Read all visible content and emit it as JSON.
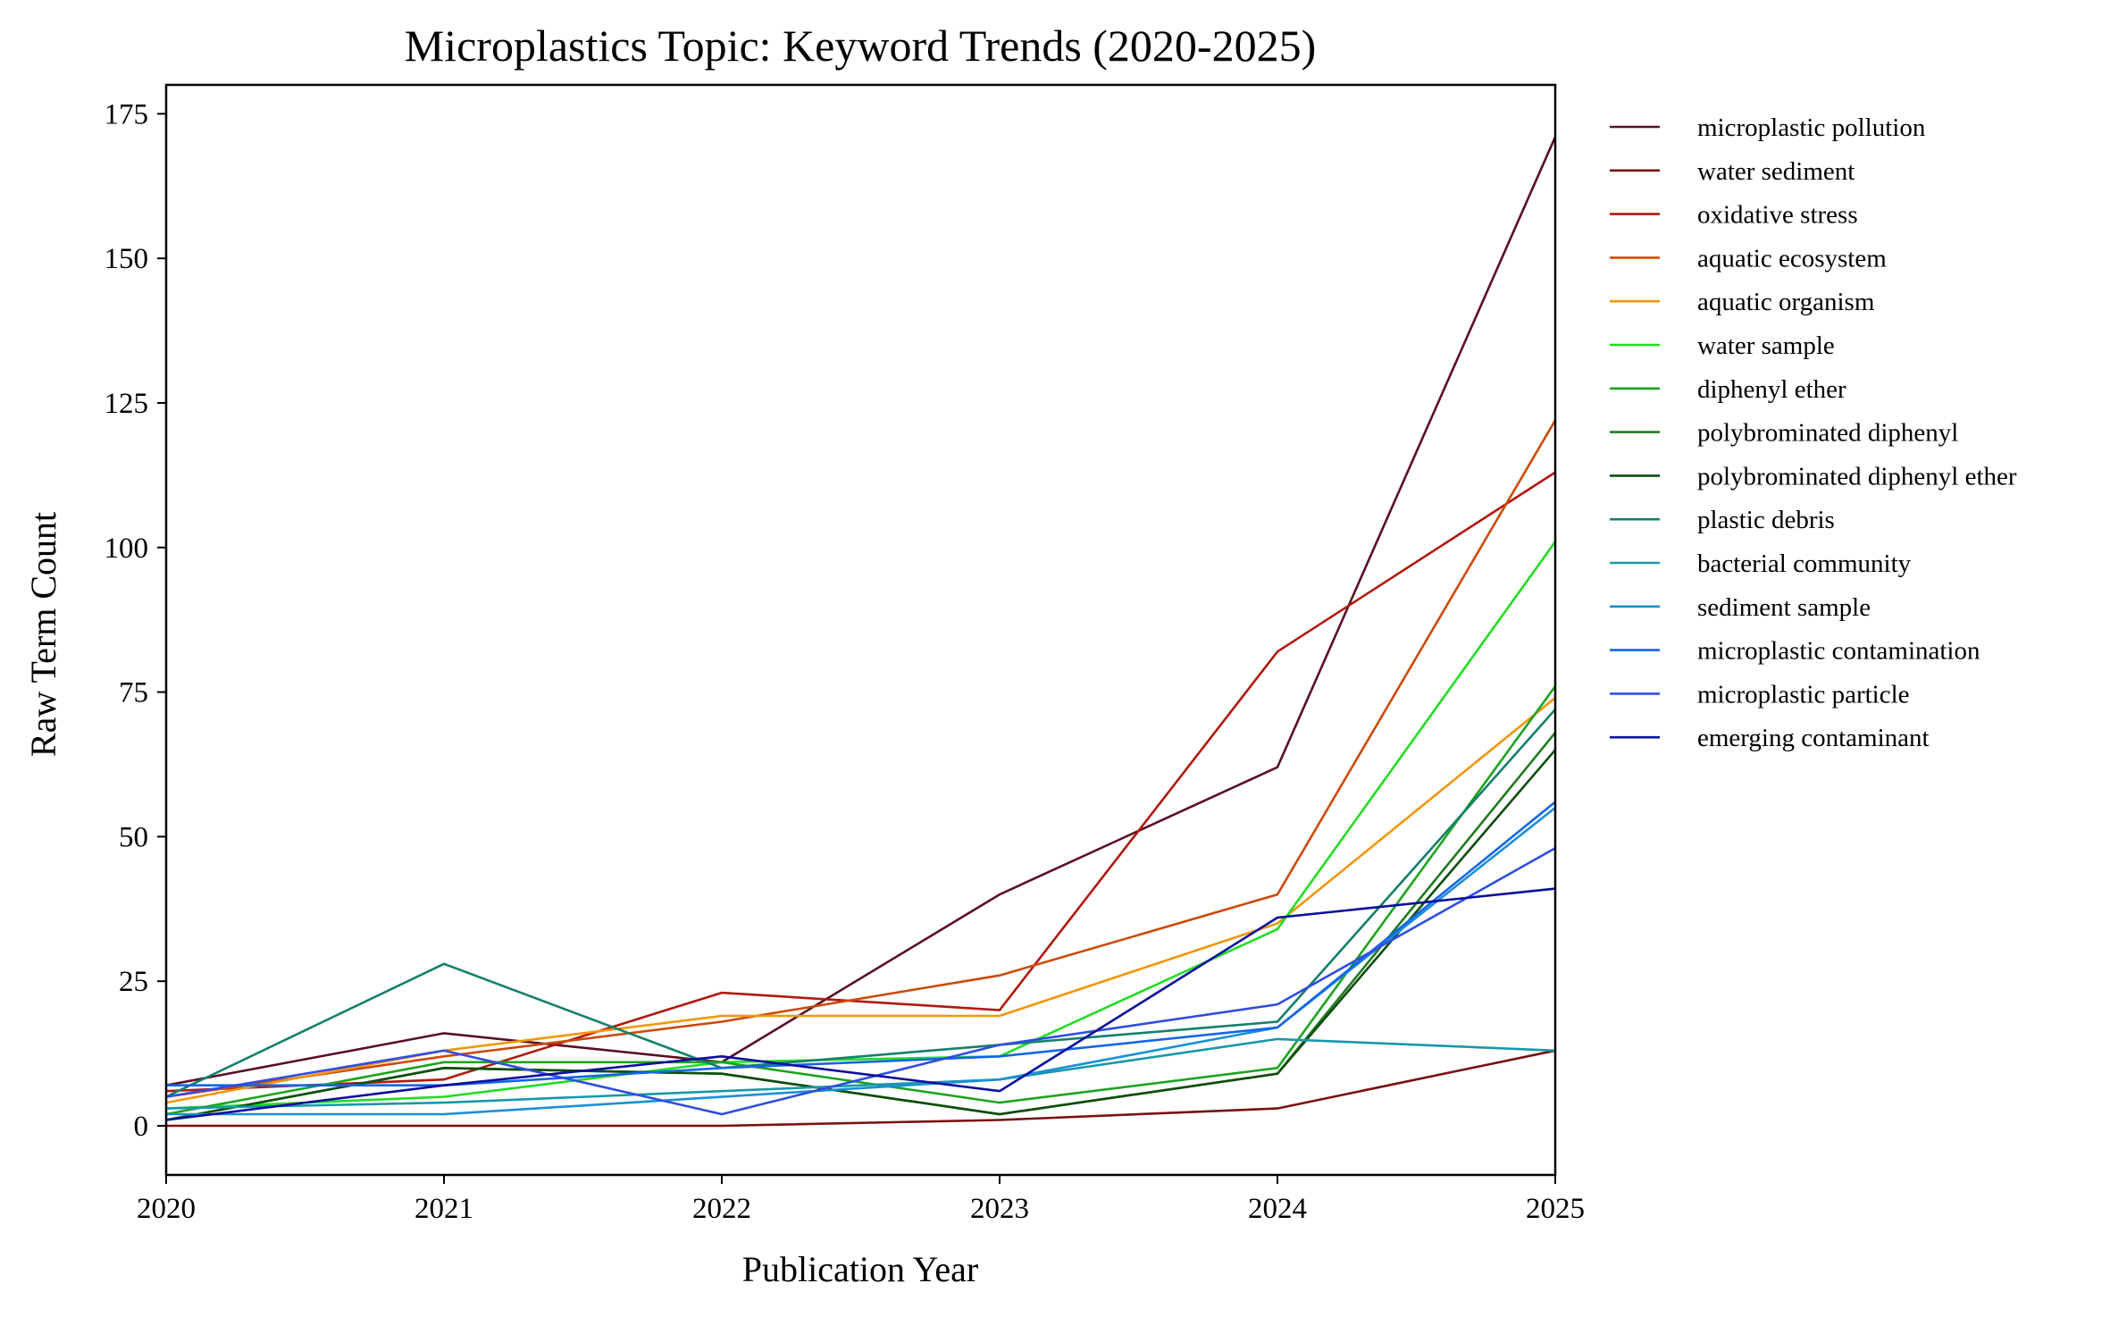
{
  "chart_data": {
    "type": "line",
    "title": "Microplastics Topic: Keyword Trends (2020-2025)",
    "xlabel": "Publication Year",
    "ylabel": "Raw Term Count",
    "x": [
      2020,
      2021,
      2022,
      2023,
      2024,
      2025
    ],
    "x_ticks": [
      "2020",
      "2021",
      "2022",
      "2023",
      "2024",
      "2025"
    ],
    "y_ticks": [
      "0",
      "25",
      "50",
      "75",
      "100",
      "125",
      "150",
      "175"
    ],
    "y_tick_values": [
      0,
      25,
      50,
      75,
      100,
      125,
      150,
      175
    ],
    "xlim": [
      2020,
      2025
    ],
    "ylim": [
      -8.5,
      180
    ],
    "grid": false,
    "legend_position": "outside-right-top",
    "series": [
      {
        "name": "microplastic pollution",
        "color": "#5a0f24",
        "values": [
          7,
          16,
          11,
          40,
          62,
          171
        ]
      },
      {
        "name": "water sediment",
        "color": "#7a1010",
        "values": [
          0,
          0,
          0,
          1,
          3,
          13
        ]
      },
      {
        "name": "oxidative stress",
        "color": "#b0190f",
        "values": [
          6,
          8,
          23,
          20,
          82,
          113
        ]
      },
      {
        "name": "aquatic ecosystem",
        "color": "#cc4a08",
        "values": [
          5,
          12,
          18,
          26,
          40,
          122
        ]
      },
      {
        "name": "aquatic organism",
        "color": "#f2960c",
        "values": [
          4,
          13,
          19,
          19,
          35,
          74
        ]
      },
      {
        "name": "water sample",
        "color": "#22dd22",
        "values": [
          3,
          5,
          11,
          12,
          34,
          101
        ]
      },
      {
        "name": "diphenyl ether",
        "color": "#1ea31e",
        "values": [
          2,
          11,
          11,
          4,
          10,
          76
        ]
      },
      {
        "name": "polybrominated diphenyl",
        "color": "#217a21",
        "values": [
          1,
          10,
          9,
          2,
          9,
          68
        ]
      },
      {
        "name": "polybrominated diphenyl ether",
        "color": "#0d4d0d",
        "values": [
          1,
          10,
          9,
          2,
          9,
          65
        ]
      },
      {
        "name": "plastic debris",
        "color": "#15806b",
        "values": [
          5,
          28,
          10,
          14,
          18,
          72
        ]
      },
      {
        "name": "bacterial community",
        "color": "#1898a8",
        "values": [
          3,
          4,
          6,
          8,
          15,
          13
        ]
      },
      {
        "name": "sediment sample",
        "color": "#1a8fd6",
        "values": [
          2,
          2,
          5,
          8,
          17,
          55
        ]
      },
      {
        "name": "microplastic contamination",
        "color": "#1565e8",
        "values": [
          7,
          7,
          10,
          12,
          17,
          56
        ]
      },
      {
        "name": "microplastic particle",
        "color": "#2f4ee0",
        "values": [
          5,
          13,
          2,
          14,
          21,
          48
        ]
      },
      {
        "name": "emerging contaminant",
        "color": "#0c0f9c",
        "values": [
          1,
          7,
          12,
          6,
          36,
          41
        ]
      }
    ]
  }
}
